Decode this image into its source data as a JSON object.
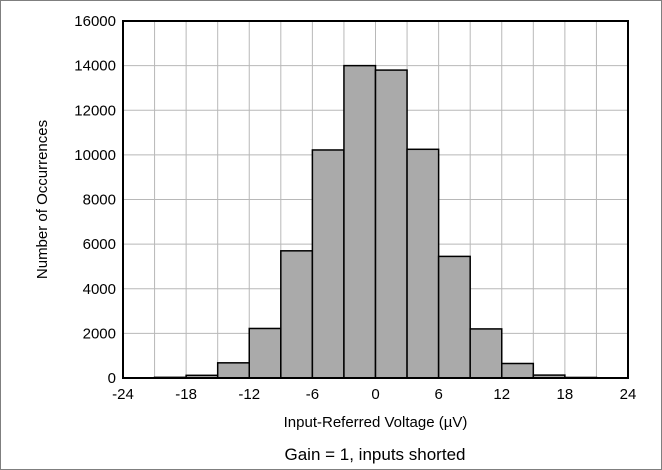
{
  "chart_data": {
    "type": "bar",
    "xlabel": "Input-Referred Voltage (µV)",
    "ylabel": "Number of Occurrences",
    "caption": "Gain = 1, inputs shorted",
    "xlim": [
      -24,
      24
    ],
    "ylim": [
      0,
      16000
    ],
    "x_ticks": [
      -24,
      -18,
      -12,
      -6,
      0,
      6,
      12,
      18,
      24
    ],
    "y_ticks": [
      0,
      2000,
      4000,
      6000,
      8000,
      10000,
      12000,
      14000,
      16000
    ],
    "x_minor_step": 3,
    "grid": true,
    "bar_color": "#aaaaaa",
    "bins": [
      {
        "x0": -24,
        "x1": -21,
        "value": 0
      },
      {
        "x0": -21,
        "x1": -18,
        "value": 30
      },
      {
        "x0": -18,
        "x1": -15,
        "value": 120
      },
      {
        "x0": -15,
        "x1": -12,
        "value": 680
      },
      {
        "x0": -12,
        "x1": -9,
        "value": 2220
      },
      {
        "x0": -9,
        "x1": -6,
        "value": 5700
      },
      {
        "x0": -6,
        "x1": -3,
        "value": 10220
      },
      {
        "x0": -3,
        "x1": 0,
        "value": 14000
      },
      {
        "x0": 0,
        "x1": 3,
        "value": 13800
      },
      {
        "x0": 3,
        "x1": 6,
        "value": 10250
      },
      {
        "x0": 6,
        "x1": 9,
        "value": 5450
      },
      {
        "x0": 9,
        "x1": 12,
        "value": 2200
      },
      {
        "x0": 12,
        "x1": 15,
        "value": 650
      },
      {
        "x0": 15,
        "x1": 18,
        "value": 130
      },
      {
        "x0": 18,
        "x1": 21,
        "value": 25
      },
      {
        "x0": 21,
        "x1": 24,
        "value": 0
      }
    ]
  }
}
